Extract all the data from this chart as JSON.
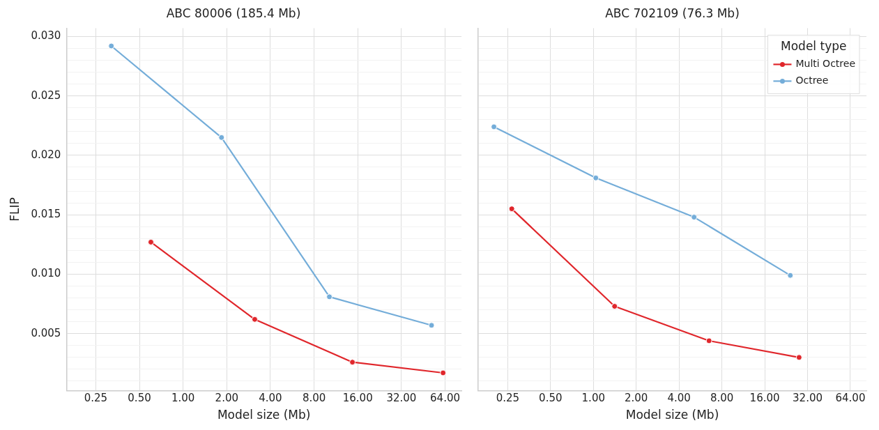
{
  "chart_data": [
    {
      "type": "line",
      "title": "ABC 80006 (185.4 Mb)",
      "xlabel": "Model size (Mb)",
      "ylabel": "FLIP",
      "log": "x",
      "grid": true,
      "legend": false,
      "marker": "circle",
      "line_style": "solid",
      "xlim": [
        0.157,
        83
      ],
      "ylim": [
        0.0002,
        0.0307
      ],
      "xticks": [
        0.25,
        {
          "value": 0.5,
          "label": "0.50"
        },
        {
          "value": 1,
          "label": "1.00"
        },
        {
          "value": 2,
          "label": "2.00"
        },
        {
          "value": 4,
          "label": "4.00"
        },
        {
          "value": 8,
          "label": "8.00"
        },
        {
          "value": 16,
          "label": "16.00"
        },
        {
          "value": 32,
          "label": "32.00"
        },
        {
          "value": 64,
          "label": "64.00"
        }
      ],
      "yticks": [
        {
          "value": 0.001,
          "label": null
        },
        {
          "value": 0.002,
          "label": null
        },
        {
          "value": 0.003,
          "label": null
        },
        {
          "value": 0.004,
          "label": null
        },
        0.005,
        {
          "value": 0.006,
          "label": null
        },
        {
          "value": 0.007,
          "label": null
        },
        {
          "value": 0.008,
          "label": null
        },
        {
          "value": 0.009,
          "label": null
        },
        {
          "value": 0.01,
          "label": "0.010"
        },
        {
          "value": 0.011,
          "label": null
        },
        {
          "value": 0.012,
          "label": null
        },
        {
          "value": 0.013,
          "label": null
        },
        {
          "value": 0.014,
          "label": null
        },
        0.015,
        {
          "value": 0.016,
          "label": null
        },
        {
          "value": 0.017,
          "label": null
        },
        {
          "value": 0.018,
          "label": null
        },
        {
          "value": 0.019,
          "label": null
        },
        {
          "value": 0.02,
          "label": "0.020"
        },
        {
          "value": 0.021,
          "label": null
        },
        {
          "value": 0.022,
          "label": null
        },
        {
          "value": 0.023,
          "label": null
        },
        {
          "value": 0.024,
          "label": null
        },
        0.025,
        {
          "value": 0.026,
          "label": null
        },
        {
          "value": 0.027,
          "label": null
        },
        {
          "value": 0.028,
          "label": null
        },
        {
          "value": 0.029,
          "label": null
        },
        {
          "value": 0.03,
          "label": "0.030"
        }
      ],
      "series": [
        {
          "color": "#e0262b",
          "x": [
            0.6,
            3.12,
            14.7,
            62
          ],
          "values": [
            0.0127,
            0.0062,
            0.0026,
            0.0017
          ]
        },
        {
          "color": "#74add9",
          "x": [
            0.32,
            1.84,
            10.2,
            51.6
          ],
          "values": [
            0.0292,
            0.0215,
            0.0081,
            0.0057
          ]
        }
      ]
    },
    {
      "type": "line",
      "title": "ABC 702109 (76.3 Mb)",
      "xlabel": "Model size (Mb)",
      "legend_title": "Model type",
      "log": "x",
      "grid": true,
      "legend": "top right",
      "marker": "circle",
      "line_style": "solid",
      "tick_labels": "x",
      "xlim": [
        0.155,
        83
      ],
      "ylim": [
        0.0002,
        0.0307
      ],
      "xticks": [
        0.25,
        {
          "value": 0.5,
          "label": "0.50"
        },
        {
          "value": 1,
          "label": "1.00"
        },
        {
          "value": 2,
          "label": "2.00"
        },
        {
          "value": 4,
          "label": "4.00"
        },
        {
          "value": 8,
          "label": "8.00"
        },
        {
          "value": 16,
          "label": "16.00"
        },
        {
          "value": 32,
          "label": "32.00"
        },
        {
          "value": 64,
          "label": "64.00"
        }
      ],
      "yticks": [
        {
          "value": 0.001,
          "label": null
        },
        {
          "value": 0.002,
          "label": null
        },
        {
          "value": 0.003,
          "label": null
        },
        {
          "value": 0.004,
          "label": null
        },
        0.005,
        {
          "value": 0.006,
          "label": null
        },
        {
          "value": 0.007,
          "label": null
        },
        {
          "value": 0.008,
          "label": null
        },
        {
          "value": 0.009,
          "label": null
        },
        0.01,
        {
          "value": 0.011,
          "label": null
        },
        {
          "value": 0.012,
          "label": null
        },
        {
          "value": 0.013,
          "label": null
        },
        {
          "value": 0.014,
          "label": null
        },
        0.015,
        {
          "value": 0.016,
          "label": null
        },
        {
          "value": 0.017,
          "label": null
        },
        {
          "value": 0.018,
          "label": null
        },
        {
          "value": 0.019,
          "label": null
        },
        0.02,
        {
          "value": 0.021,
          "label": null
        },
        {
          "value": 0.022,
          "label": null
        },
        {
          "value": 0.023,
          "label": null
        },
        {
          "value": 0.024,
          "label": null
        },
        0.025,
        {
          "value": 0.026,
          "label": null
        },
        {
          "value": 0.027,
          "label": null
        },
        {
          "value": 0.028,
          "label": null
        },
        {
          "value": 0.029,
          "label": null
        },
        0.03
      ],
      "series": [
        {
          "name": "Multi Octree",
          "color": "#e0262b",
          "x": [
            0.267,
            1.41,
            6.5,
            27.9
          ],
          "values": [
            0.0155,
            0.0073,
            0.0044,
            0.003
          ]
        },
        {
          "name": "Octree",
          "color": "#74add9",
          "x": [
            0.2,
            1.04,
            5.1,
            24.2
          ],
          "values": [
            0.0224,
            0.0181,
            0.0148,
            0.0099
          ]
        }
      ]
    }
  ]
}
